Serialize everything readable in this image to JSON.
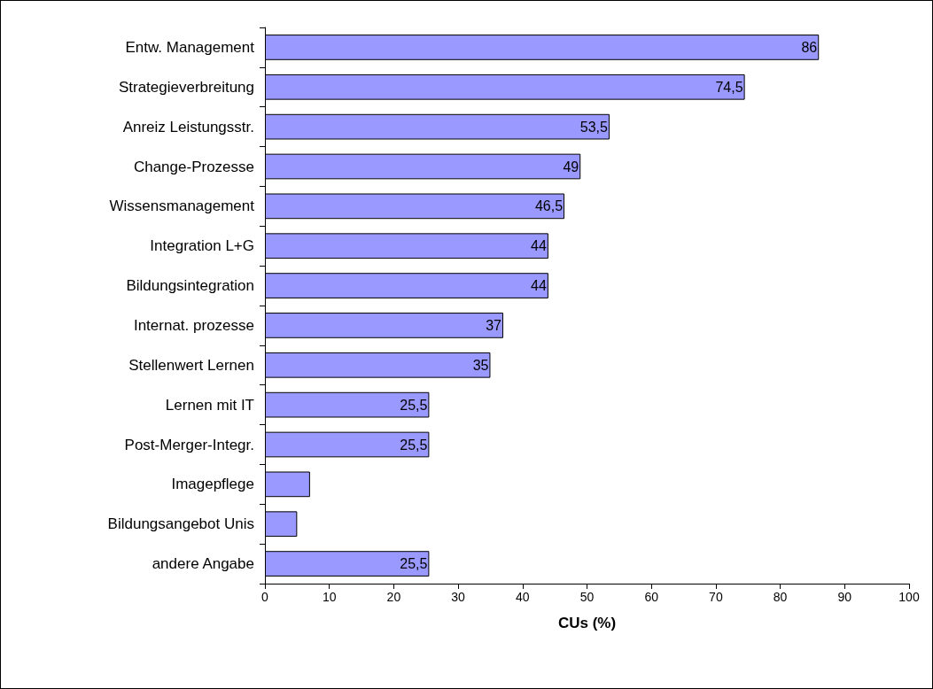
{
  "chart_data": {
    "type": "bar",
    "orientation": "horizontal",
    "xlabel": "CUs (%)",
    "categories": [
      "Entw. Management",
      "Strategieverbreitung",
      "Anreiz Leistungsstr.",
      "Change-Prozesse",
      "Wissensmanagement",
      "Integration L+G",
      "Bildungsintegration",
      "Internat. prozesse",
      "Stellenwert Lernen",
      "Lernen mit IT",
      "Post-Merger-Integr.",
      "Imagepflege",
      "Bildungsangebot Unis",
      "andere Angabe"
    ],
    "values": [
      86,
      74.5,
      53.5,
      49,
      46.5,
      44,
      44,
      37,
      35,
      25.5,
      25.5,
      7,
      5,
      25.5
    ],
    "value_labels": [
      "86",
      "74,5",
      "53,5",
      "49",
      "46,5",
      "44",
      "44",
      "37",
      "35",
      "25,5",
      "25,5",
      null,
      null,
      "25,5"
    ],
    "color": "#9999ff",
    "xlim": [
      0,
      100
    ],
    "xticks": [
      0,
      10,
      20,
      30,
      40,
      50,
      60,
      70,
      80,
      90,
      100
    ],
    "grid": false
  }
}
